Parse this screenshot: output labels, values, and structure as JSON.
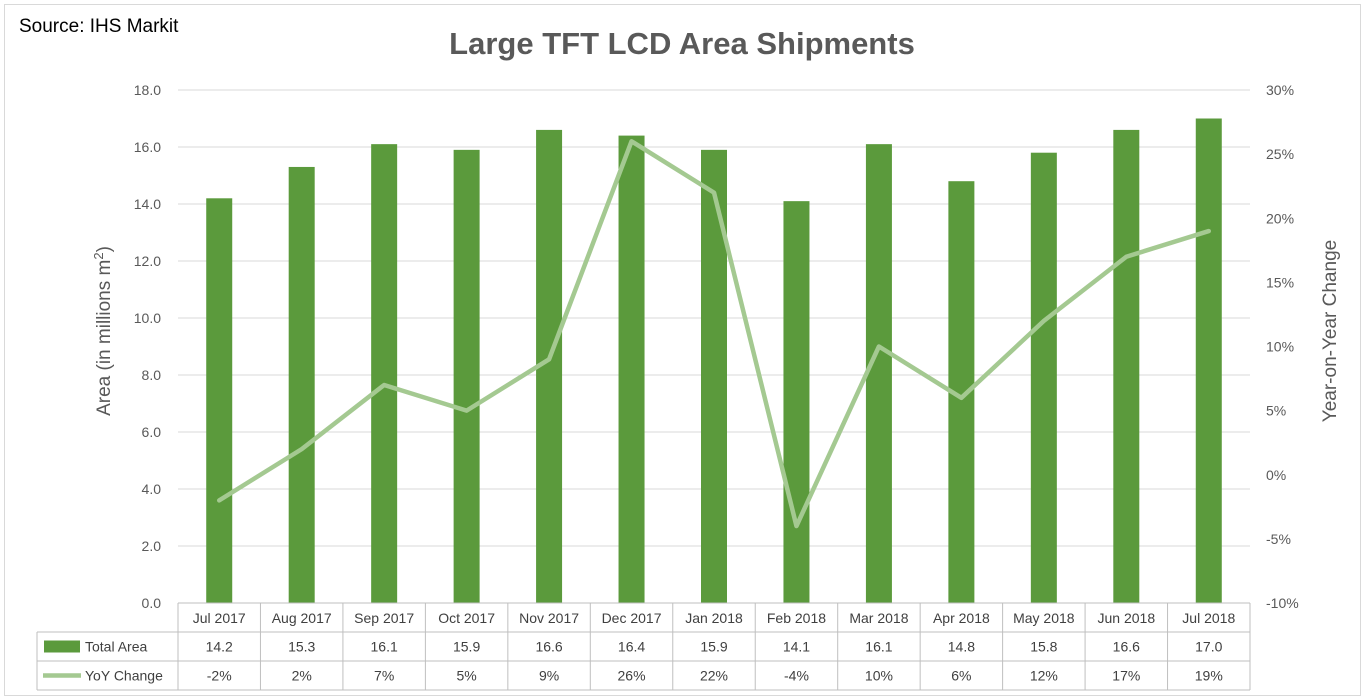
{
  "source": "Source: IHS Markit",
  "chart_data": {
    "type": "bar",
    "title": "Large TFT LCD Area Shipments",
    "categories": [
      "Jul 2017",
      "Aug 2017",
      "Sep 2017",
      "Oct 2017",
      "Nov 2017",
      "Dec 2017",
      "Jan 2018",
      "Feb 2018",
      "Mar 2018",
      "Apr 2018",
      "May 2018",
      "Jun 2018",
      "Jul 2018"
    ],
    "ylabel": "Area (in millions m²)",
    "y2label": "Year-on-Year Change",
    "ylim": [
      0,
      18
    ],
    "y2lim": [
      -10,
      30
    ],
    "yticks": [
      "0.0",
      "2.0",
      "4.0",
      "6.0",
      "8.0",
      "10.0",
      "12.0",
      "14.0",
      "16.0",
      "18.0"
    ],
    "y2ticks": [
      "-10%",
      "-5%",
      "0%",
      "5%",
      "10%",
      "15%",
      "20%",
      "25%",
      "30%"
    ],
    "grid": true,
    "legend": "data-table",
    "series": [
      {
        "name": "Total Area",
        "type": "bar",
        "axis": "left",
        "color": "#5b9a3c",
        "values": [
          14.2,
          15.3,
          16.1,
          15.9,
          16.6,
          16.4,
          15.9,
          14.1,
          16.1,
          14.8,
          15.8,
          16.6,
          17.0
        ],
        "labels": [
          "14.2",
          "15.3",
          "16.1",
          "15.9",
          "16.6",
          "16.4",
          "15.9",
          "14.1",
          "16.1",
          "14.8",
          "15.8",
          "16.6",
          "17.0"
        ]
      },
      {
        "name": "YoY Change",
        "type": "line",
        "axis": "right",
        "color": "#a4c991",
        "values": [
          -2,
          2,
          7,
          5,
          9,
          26,
          22,
          -4,
          10,
          6,
          12,
          17,
          19
        ],
        "labels": [
          "-2%",
          "2%",
          "7%",
          "5%",
          "9%",
          "26%",
          "22%",
          "-4%",
          "10%",
          "6%",
          "12%",
          "17%",
          "19%"
        ]
      }
    ]
  }
}
